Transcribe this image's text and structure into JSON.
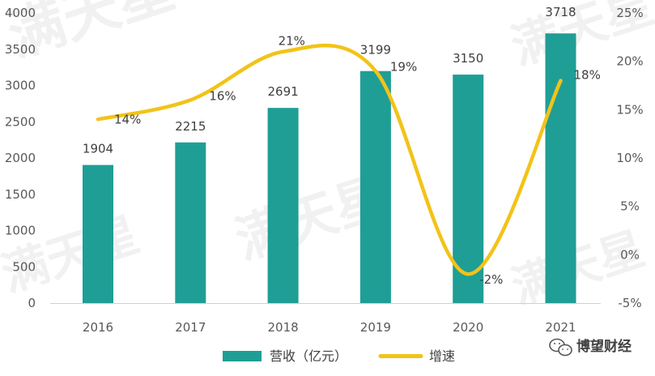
{
  "chart_data": {
    "type": "bar",
    "categories": [
      "2016",
      "2017",
      "2018",
      "2019",
      "2020",
      "2021"
    ],
    "series": [
      {
        "name": "营收（亿元）",
        "type": "bar",
        "axis": "left",
        "values": [
          1904,
          2215,
          2691,
          3199,
          3150,
          3718
        ],
        "labels": [
          "1904",
          "2215",
          "2691",
          "3199",
          "3150",
          "3718"
        ],
        "color": "#1f9e96"
      },
      {
        "name": "增速",
        "type": "line",
        "axis": "right",
        "values": [
          14,
          16,
          21,
          19,
          -2,
          18
        ],
        "labels": [
          "14%",
          "16%",
          "21%",
          "19%",
          "-2%",
          "18%"
        ],
        "color": "#f2c318"
      }
    ],
    "y_left": {
      "min": 0,
      "max": 4000,
      "ticks": [
        "0",
        "500",
        "1000",
        "1500",
        "2000",
        "2500",
        "3000",
        "3500",
        "4000"
      ]
    },
    "y_right": {
      "min": -5,
      "max": 25,
      "ticks": [
        "-5%",
        "0%",
        "5%",
        "10%",
        "15%",
        "20%",
        "25%"
      ]
    },
    "legend_position": "bottom",
    "grid": false
  },
  "watermark": {
    "text": "满天星"
  },
  "source_credit": "博望财经",
  "icon": "wechat-icon"
}
